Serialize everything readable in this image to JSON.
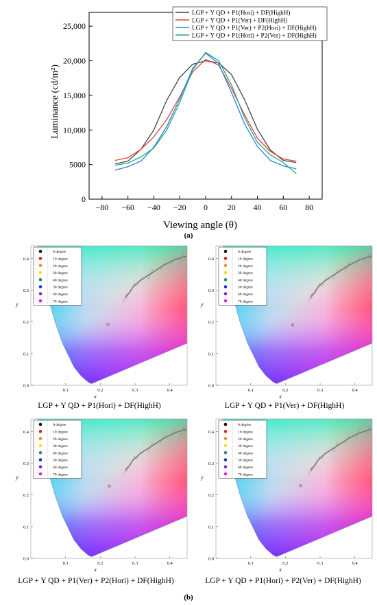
{
  "figure": {
    "caption_a": "(a)",
    "caption_b": "(b)"
  },
  "chart_data": [
    {
      "type": "line",
      "xlabel": "Viewing angle (θ)",
      "ylabel": "Luminance (cd/m²)",
      "xlim": [
        -90,
        90
      ],
      "ylim": [
        0,
        27000
      ],
      "xticks": [
        -80,
        -60,
        -40,
        -20,
        0,
        20,
        40,
        60,
        80
      ],
      "yticks": [
        0,
        5000,
        10000,
        15000,
        20000,
        25000
      ],
      "ytick_labels": [
        "0",
        "5000",
        "10,000",
        "15,000",
        "20,000",
        "25,000"
      ],
      "legend_position": "top-right",
      "x": [
        -70,
        -60,
        -50,
        -40,
        -30,
        -20,
        -10,
        0,
        10,
        20,
        30,
        40,
        50,
        60,
        70
      ],
      "series": [
        {
          "name": "LGP + Y QD + P1(Hori) + DF(HighH)",
          "color": "#444444",
          "values": [
            5100,
            5500,
            7200,
            10000,
            14300,
            17600,
            19500,
            20000,
            19700,
            18000,
            14400,
            10100,
            7100,
            5600,
            5300
          ]
        },
        {
          "name": "LGP + Y QD + P1(Ver) + DF(HighH)",
          "color": "#e8413b",
          "values": [
            5600,
            6000,
            7200,
            9000,
            11500,
            14800,
            18400,
            20200,
            19400,
            16000,
            12200,
            8800,
            6900,
            5800,
            5500
          ]
        },
        {
          "name": "LGP + Y QD + P1(Ver) + P2(Hori) + DF(HighH)",
          "color": "#2b7fd6",
          "values": [
            4200,
            4700,
            5500,
            7500,
            10500,
            14500,
            18900,
            21100,
            19600,
            15400,
            10900,
            7600,
            5600,
            4800,
            4400
          ]
        },
        {
          "name": "LGP + Y QD + P1(Hori) + P2(Ver) + DF(HighH)",
          "color": "#1aa88a",
          "values": [
            4900,
            5200,
            6100,
            7400,
            10000,
            14000,
            18700,
            21200,
            20000,
            16500,
            11800,
            8200,
            6400,
            5300,
            3700
          ]
        }
      ]
    },
    {
      "type": "scatter",
      "xlabel": "x",
      "ylabel": "y",
      "xticks": [
        "0.1",
        "0.2",
        "0.3",
        "0.4"
      ],
      "yticks": [
        "0.0",
        "0.1",
        "0.2",
        "0.3",
        "0.4"
      ],
      "legend": [
        "0 degree",
        "10 degree",
        "20 degree",
        "30 degree",
        "40 degree",
        "50 degree",
        "60 degree",
        "70 degree"
      ],
      "legend_colors": [
        "#111111",
        "#e81c1c",
        "#f08a1c",
        "#f2e21c",
        "#2a8a8a",
        "#1c2ad8",
        "#6a2ad8",
        "#e81ce8"
      ],
      "panels": [
        {
          "title": "LGP + Y QD + P1(Hori) + DF(HighH)",
          "point": [
            0.222,
            0.192
          ]
        },
        {
          "title": "LGP + Y QD  + P1(Ver) + DF(HighH)",
          "point": [
            0.221,
            0.19
          ]
        },
        {
          "title": "LGP + Y QD + P1(Ver) + P2(Hori) + DF(HighH)",
          "point": [
            0.226,
            0.228
          ]
        },
        {
          "title": "LGP + Y QD + P1(Hori) + P2(Ver) + DF(HighH)",
          "point": [
            0.244,
            0.229
          ]
        }
      ]
    }
  ]
}
